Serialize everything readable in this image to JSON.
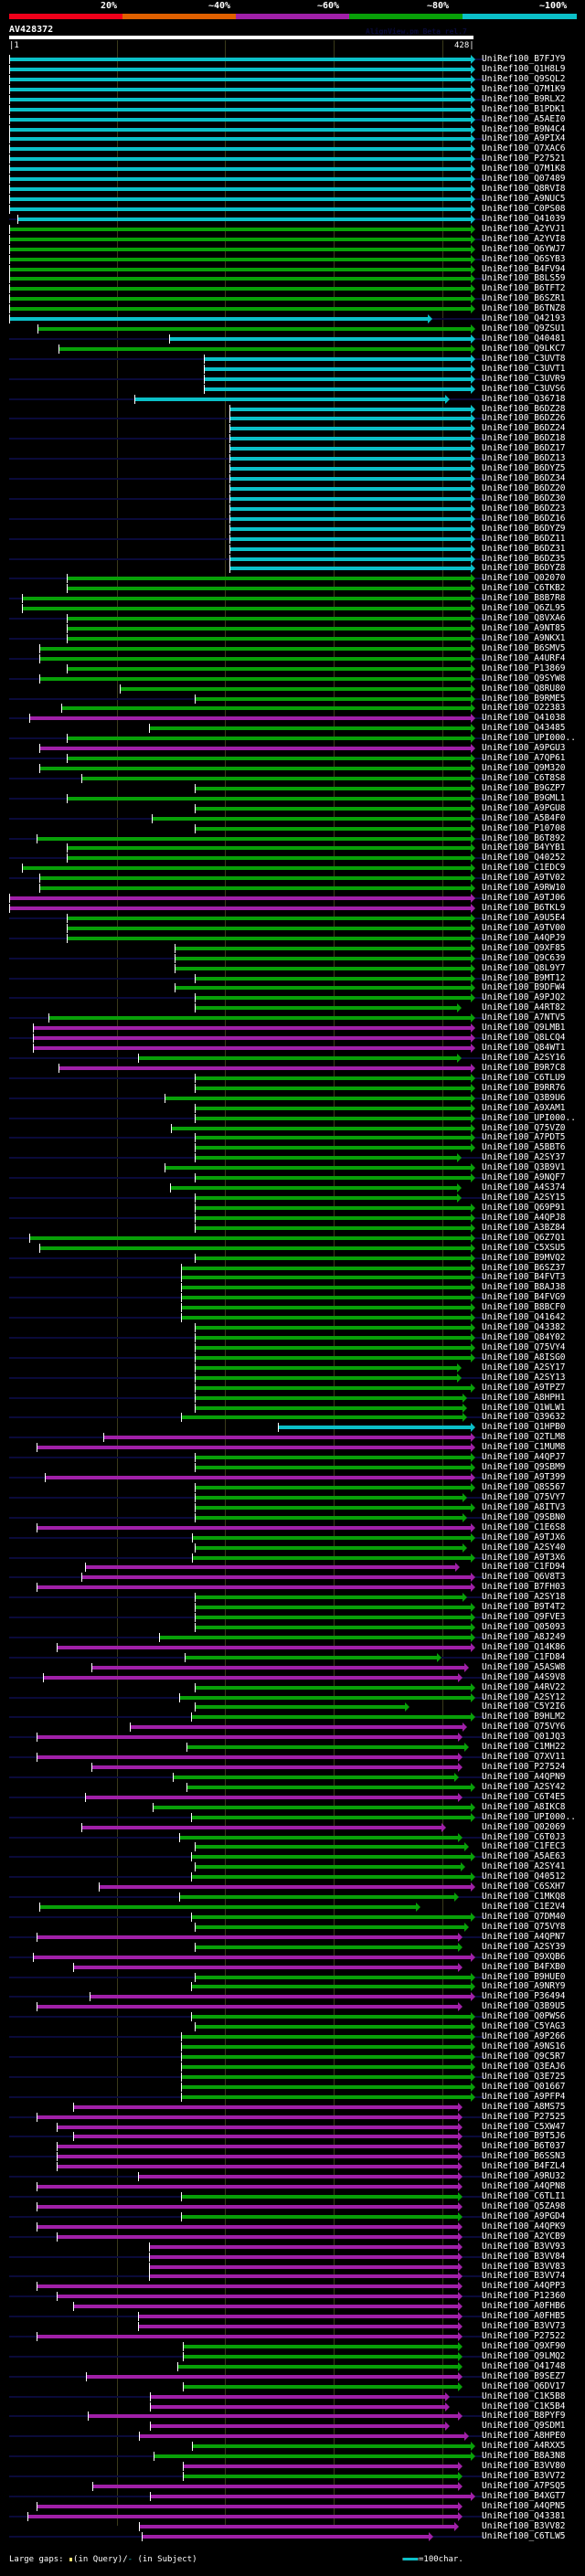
{
  "legend": {
    "labels": [
      "20%",
      "~40%",
      "~60%",
      "~80%",
      "~100%"
    ],
    "colors": [
      "#f0001a",
      "#e06000",
      "#a020a8",
      "#08a008",
      "#0bc0c8"
    ]
  },
  "query": {
    "id": "AV428372",
    "start": "|1",
    "end": "428|",
    "length": 428
  },
  "watermark": "AlignView.pm Beta rel.7",
  "footer": {
    "gaps_label": "Large gaps:",
    "in_query": "(in Query)/",
    "in_subject": "(in Subject)",
    "scale_label": "=100char."
  },
  "colors": {
    "c": "#0bc0c8",
    "g": "#08a008",
    "m": "#a020a8"
  },
  "rows": [
    [
      "UniRef100_B7FJY9",
      "c",
      1,
      428
    ],
    [
      "UniRef100_Q1H8L9",
      "c",
      1,
      428
    ],
    [
      "UniRef100_Q9SQL2",
      "c",
      1,
      428
    ],
    [
      "UniRef100_Q7M1K9",
      "c",
      1,
      428
    ],
    [
      "UniRef100_B9RLX2",
      "c",
      1,
      428
    ],
    [
      "UniRef100_B1PDK1",
      "c",
      1,
      428
    ],
    [
      "UniRef100_A5AEI0",
      "c",
      1,
      428
    ],
    [
      "UniRef100_B9N4C4",
      "c",
      1,
      428
    ],
    [
      "UniRef100_A9PIX4",
      "c",
      1,
      428
    ],
    [
      "UniRef100_Q7XAC6",
      "c",
      1,
      428
    ],
    [
      "UniRef100_P27521",
      "c",
      1,
      428
    ],
    [
      "UniRef100_Q7M1K8",
      "c",
      1,
      428
    ],
    [
      "UniRef100_Q07489",
      "c",
      1,
      428
    ],
    [
      "UniRef100_Q8RVI8",
      "c",
      1,
      428
    ],
    [
      "UniRef100_A9NUC5",
      "c",
      1,
      428
    ],
    [
      "UniRef100_C0PS08",
      "c",
      1,
      428
    ],
    [
      "UniRef100_Q41039",
      "c",
      9,
      428
    ],
    [
      "UniRef100_A2YVJ1",
      "g",
      1,
      428
    ],
    [
      "UniRef100_A2YVI8",
      "g",
      1,
      428
    ],
    [
      "UniRef100_Q6YWJ7",
      "g",
      1,
      428
    ],
    [
      "UniRef100_Q6SYB3",
      "g",
      1,
      428
    ],
    [
      "UniRef100_B4FV94",
      "g",
      1,
      428
    ],
    [
      "UniRef100_B8LS59",
      "g",
      1,
      428
    ],
    [
      "UniRef100_B6TFT2",
      "g",
      1,
      428
    ],
    [
      "UniRef100_B6SZR1",
      "g",
      1,
      428
    ],
    [
      "UniRef100_B6TNZ8",
      "g",
      1,
      428
    ],
    [
      "UniRef100_Q42193",
      "c",
      1,
      388
    ],
    [
      "UniRef100_Q9ZSU1",
      "g",
      27,
      428
    ],
    [
      "UniRef100_Q40481",
      "c",
      149,
      428
    ],
    [
      "UniRef100_Q9LKC7",
      "g",
      47,
      428
    ],
    [
      "UniRef100_C3UVT8",
      "c",
      181,
      428
    ],
    [
      "UniRef100_C3UVT1",
      "c",
      181,
      428
    ],
    [
      "UniRef100_C3UVR9",
      "c",
      181,
      428
    ],
    [
      "UniRef100_C3UVS6",
      "c",
      181,
      428
    ],
    [
      "UniRef100_Q36718",
      "c",
      117,
      404
    ],
    [
      "UniRef100_B6DZ28",
      "c",
      205,
      428
    ],
    [
      "UniRef100_B6DZ26",
      "c",
      205,
      428
    ],
    [
      "UniRef100_B6DZ24",
      "c",
      205,
      428
    ],
    [
      "UniRef100_B6DZ18",
      "c",
      205,
      428
    ],
    [
      "UniRef100_B6DZ17",
      "c",
      205,
      428
    ],
    [
      "UniRef100_B6DZ13",
      "c",
      205,
      428
    ],
    [
      "UniRef100_B6DYZ5",
      "c",
      205,
      428
    ],
    [
      "UniRef100_B6DZ34",
      "c",
      205,
      428
    ],
    [
      "UniRef100_B6DZ20",
      "c",
      205,
      428
    ],
    [
      "UniRef100_B6DZ30",
      "c",
      205,
      428
    ],
    [
      "UniRef100_B6DZ23",
      "c",
      205,
      428
    ],
    [
      "UniRef100_B6DZ16",
      "c",
      205,
      428
    ],
    [
      "UniRef100_B6DYZ9",
      "c",
      205,
      428
    ],
    [
      "UniRef100_B6DZ11",
      "c",
      205,
      428
    ],
    [
      "UniRef100_B6DZ31",
      "c",
      205,
      428
    ],
    [
      "UniRef100_B6DZ35",
      "c",
      205,
      428
    ],
    [
      "UniRef100_B6DYZ8",
      "c",
      205,
      428
    ],
    [
      "UniRef100_Q02070",
      "g",
      54,
      428
    ],
    [
      "UniRef100_C6TKB2",
      "g",
      54,
      428
    ],
    [
      "UniRef100_B8B7R8",
      "g",
      13,
      428
    ],
    [
      "UniRef100_Q6ZL95",
      "g",
      13,
      428
    ],
    [
      "UniRef100_Q8VXA6",
      "g",
      54,
      428
    ],
    [
      "UniRef100_A9NT85",
      "g",
      54,
      428
    ],
    [
      "UniRef100_A9NKX1",
      "g",
      54,
      428
    ],
    [
      "UniRef100_B6SMV5",
      "g",
      29,
      428
    ],
    [
      "UniRef100_A4URF4",
      "g",
      29,
      428
    ],
    [
      "UniRef100_P13869",
      "g",
      54,
      428
    ],
    [
      "UniRef100_Q9SYW8",
      "g",
      29,
      428
    ],
    [
      "UniRef100_Q8RU80",
      "g",
      103,
      428
    ],
    [
      "UniRef100_B9RME5",
      "g",
      173,
      428
    ],
    [
      "UniRef100_O22383",
      "g",
      49,
      428
    ],
    [
      "UniRef100_Q41038",
      "m",
      20,
      428
    ],
    [
      "UniRef100_Q43485",
      "g",
      130,
      428
    ],
    [
      "UniRef100_UPI000..",
      "g",
      54,
      428
    ],
    [
      "UniRef100_A9PGU3",
      "m",
      29,
      428
    ],
    [
      "UniRef100_A7QP61",
      "g",
      54,
      428
    ],
    [
      "UniRef100_Q9M320",
      "g",
      29,
      428
    ],
    [
      "UniRef100_C6T8S8",
      "g",
      68,
      428
    ],
    [
      "UniRef100_B9GZP7",
      "g",
      173,
      428
    ],
    [
      "UniRef100_B9GML1",
      "g",
      54,
      428
    ],
    [
      "UniRef100_A9PGU8",
      "g",
      173,
      428
    ],
    [
      "UniRef100_A5B4F0",
      "g",
      133,
      428
    ],
    [
      "UniRef100_P10708",
      "g",
      173,
      428
    ],
    [
      "UniRef100_B6T892",
      "g",
      26,
      428
    ],
    [
      "UniRef100_B4YYB1",
      "g",
      54,
      428
    ],
    [
      "UniRef100_Q40252",
      "g",
      54,
      428
    ],
    [
      "UniRef100_C1EDC9",
      "g",
      13,
      428
    ],
    [
      "UniRef100_A9TV02",
      "g",
      29,
      428
    ],
    [
      "UniRef100_A9RW10",
      "g",
      29,
      428
    ],
    [
      "UniRef100_A9TJ06",
      "m",
      1,
      428
    ],
    [
      "UniRef100_B6TKL9",
      "m",
      1,
      428
    ],
    [
      "UniRef100_A9U5E4",
      "g",
      54,
      428
    ],
    [
      "UniRef100_A9TV00",
      "g",
      54,
      428
    ],
    [
      "UniRef100_A4QPJ9",
      "g",
      54,
      428
    ],
    [
      "UniRef100_Q9XF85",
      "g",
      154,
      428
    ],
    [
      "UniRef100_Q9C639",
      "g",
      154,
      428
    ],
    [
      "UniRef100_Q8L9Y7",
      "g",
      154,
      428
    ],
    [
      "UniRef100_B9MT12",
      "g",
      173,
      428
    ],
    [
      "UniRef100_B9DFW4",
      "g",
      154,
      428
    ],
    [
      "UniRef100_A9PJQ2",
      "g",
      173,
      428
    ],
    [
      "UniRef100_A4RT82",
      "g",
      173,
      415
    ],
    [
      "UniRef100_A7NTV5",
      "g",
      37,
      428
    ],
    [
      "UniRef100_Q9LMB1",
      "m",
      23,
      428
    ],
    [
      "UniRef100_Q8LCQ4",
      "m",
      23,
      428
    ],
    [
      "UniRef100_Q84WT1",
      "m",
      23,
      428
    ],
    [
      "UniRef100_A2SY16",
      "g",
      120,
      415
    ],
    [
      "UniRef100_B9R7C8",
      "m",
      47,
      428
    ],
    [
      "UniRef100_C6TLU9",
      "g",
      173,
      428
    ],
    [
      "UniRef100_B9RR76",
      "g",
      173,
      428
    ],
    [
      "UniRef100_Q3B9U6",
      "g",
      145,
      428
    ],
    [
      "UniRef100_A9XAM1",
      "g",
      173,
      428
    ],
    [
      "UniRef100_UPI000..",
      "g",
      173,
      428
    ],
    [
      "UniRef100_Q75VZ0",
      "g",
      151,
      428
    ],
    [
      "UniRef100_A7PDT5",
      "g",
      173,
      428
    ],
    [
      "UniRef100_A5BBT6",
      "g",
      173,
      428
    ],
    [
      "UniRef100_A2SY37",
      "g",
      173,
      415
    ],
    [
      "UniRef100_Q3B9V1",
      "g",
      145,
      428
    ],
    [
      "UniRef100_A9NQF7",
      "g",
      173,
      428
    ],
    [
      "UniRef100_A4S374",
      "g",
      150,
      415
    ],
    [
      "UniRef100_A2SY15",
      "g",
      173,
      415
    ],
    [
      "UniRef100_Q69P91",
      "g",
      173,
      428
    ],
    [
      "UniRef100_A4QPJ8",
      "g",
      173,
      428
    ],
    [
      "UniRef100_A3BZ84",
      "g",
      173,
      428
    ],
    [
      "UniRef100_Q6Z7Q1",
      "g",
      20,
      428
    ],
    [
      "UniRef100_C5XSU5",
      "g",
      29,
      428
    ],
    [
      "UniRef100_B9MVQ2",
      "g",
      173,
      428
    ],
    [
      "UniRef100_B6SZ37",
      "g",
      160,
      428
    ],
    [
      "UniRef100_B4FVT3",
      "g",
      160,
      428
    ],
    [
      "UniRef100_B8AJ38",
      "g",
      160,
      428
    ],
    [
      "UniRef100_B4FVG9",
      "g",
      160,
      428
    ],
    [
      "UniRef100_B8BCF0",
      "g",
      160,
      428
    ],
    [
      "UniRef100_Q41642",
      "g",
      160,
      428
    ],
    [
      "UniRef100_Q43382",
      "g",
      173,
      428
    ],
    [
      "UniRef100_Q84Y02",
      "g",
      173,
      428
    ],
    [
      "UniRef100_Q75VY4",
      "g",
      173,
      428
    ],
    [
      "UniRef100_A8ISG0",
      "g",
      173,
      428
    ],
    [
      "UniRef100_A2SY17",
      "g",
      173,
      415
    ],
    [
      "UniRef100_A2SY13",
      "g",
      173,
      415
    ],
    [
      "UniRef100_A9TPZ7",
      "g",
      173,
      428
    ],
    [
      "UniRef100_A8HPH1",
      "g",
      173,
      420
    ],
    [
      "UniRef100_Q1WLW1",
      "g",
      173,
      420
    ],
    [
      "UniRef100_Q39632",
      "g",
      160,
      420
    ],
    [
      "UniRef100_Q1HPB0",
      "c",
      250,
      428
    ],
    [
      "UniRef100_Q2TLM8",
      "m",
      88,
      428
    ],
    [
      "UniRef100_C1MUM8",
      "m",
      26,
      428
    ],
    [
      "UniRef100_A4QPJ7",
      "g",
      173,
      428
    ],
    [
      "UniRef100_Q9SBM9",
      "g",
      173,
      428
    ],
    [
      "UniRef100_A9T399",
      "m",
      34,
      428
    ],
    [
      "UniRef100_Q8S567",
      "g",
      173,
      428
    ],
    [
      "UniRef100_Q75VY7",
      "g",
      173,
      420
    ],
    [
      "UniRef100_A8ITV3",
      "g",
      173,
      428
    ],
    [
      "UniRef100_Q9SBN0",
      "g",
      173,
      420
    ],
    [
      "UniRef100_C1E6S8",
      "m",
      26,
      428
    ],
    [
      "UniRef100_A9TJX6",
      "g",
      170,
      428
    ],
    [
      "UniRef100_A2SY40",
      "g",
      173,
      420
    ],
    [
      "UniRef100_A9T3X6",
      "g",
      170,
      428
    ],
    [
      "UniRef100_C1FD94",
      "m",
      71,
      414
    ],
    [
      "UniRef100_Q6V8T3",
      "m",
      68,
      428
    ],
    [
      "UniRef100_B7FH03",
      "m",
      26,
      428
    ],
    [
      "UniRef100_A2SY18",
      "g",
      173,
      420
    ],
    [
      "UniRef100_B9T4T2",
      "g",
      173,
      428
    ],
    [
      "UniRef100_Q9FVE3",
      "g",
      173,
      428
    ],
    [
      "UniRef100_Q05093",
      "g",
      173,
      428
    ],
    [
      "UniRef100_A8J249",
      "g",
      140,
      428
    ],
    [
      "UniRef100_Q14K86",
      "m",
      45,
      428
    ],
    [
      "UniRef100_C1FD84",
      "g",
      163,
      397
    ],
    [
      "UniRef100_A5ASW8",
      "m",
      77,
      422
    ],
    [
      "UniRef100_A4S9V8",
      "m",
      32,
      416
    ],
    [
      "UniRef100_A4RV22",
      "g",
      173,
      428
    ],
    [
      "UniRef100_A2SY12",
      "g",
      158,
      428
    ],
    [
      "UniRef100_C5Y2I6",
      "g",
      173,
      367
    ],
    [
      "UniRef100_B9HLM2",
      "g",
      169,
      428
    ],
    [
      "UniRef100_Q75VY6",
      "m",
      113,
      420
    ],
    [
      "UniRef100_Q01JQ3",
      "m",
      26,
      416
    ],
    [
      "UniRef100_C1MH22",
      "g",
      165,
      422
    ],
    [
      "UniRef100_Q7XV11",
      "m",
      26,
      416
    ],
    [
      "UniRef100_P27524",
      "m",
      77,
      416
    ],
    [
      "UniRef100_A4QPN9",
      "g",
      152,
      413
    ],
    [
      "UniRef100_A2SY42",
      "g",
      165,
      428
    ],
    [
      "UniRef100_C6T4E5",
      "m",
      71,
      416
    ],
    [
      "UniRef100_A8IKC8",
      "g",
      134,
      428
    ],
    [
      "UniRef100_UPI000..",
      "g",
      169,
      428
    ],
    [
      "UniRef100_Q02069",
      "m",
      68,
      401
    ],
    [
      "UniRef100_C6T0J3",
      "g",
      158,
      416
    ],
    [
      "UniRef100_C1FEC3",
      "g",
      173,
      422
    ],
    [
      "UniRef100_A5AE63",
      "g",
      169,
      428
    ],
    [
      "UniRef100_A2SY41",
      "g",
      173,
      419
    ],
    [
      "UniRef100_Q40512",
      "g",
      169,
      428
    ],
    [
      "UniRef100_C6SXH7",
      "m",
      84,
      428
    ],
    [
      "UniRef100_C1MKQ8",
      "g",
      158,
      413
    ],
    [
      "UniRef100_C1E2V4",
      "g",
      29,
      377
    ],
    [
      "UniRef100_Q7DM40",
      "g",
      169,
      428
    ],
    [
      "UniRef100_Q75VY8",
      "g",
      173,
      422
    ],
    [
      "UniRef100_A4QPN7",
      "m",
      26,
      416
    ],
    [
      "UniRef100_A2SY39",
      "g",
      173,
      416
    ],
    [
      "UniRef100_Q9XQB6",
      "m",
      23,
      428
    ],
    [
      "UniRef100_B4FXB0",
      "m",
      60,
      416
    ],
    [
      "UniRef100_B9HUE0",
      "g",
      173,
      428
    ],
    [
      "UniRef100_A9NRY9",
      "g",
      169,
      428
    ],
    [
      "UniRef100_P36494",
      "m",
      75,
      428
    ],
    [
      "UniRef100_Q3B9U5",
      "m",
      26,
      416
    ],
    [
      "UniRef100_Q0PWS6",
      "g",
      169,
      428
    ],
    [
      "UniRef100_C5YAG3",
      "g",
      173,
      428
    ],
    [
      "UniRef100_A9P266",
      "g",
      160,
      428
    ],
    [
      "UniRef100_A9NS16",
      "g",
      160,
      428
    ],
    [
      "UniRef100_Q9C5R7",
      "g",
      160,
      428
    ],
    [
      "UniRef100_Q3EAJ6",
      "g",
      160,
      428
    ],
    [
      "UniRef100_Q3E725",
      "g",
      160,
      428
    ],
    [
      "UniRef100_Q01667",
      "g",
      160,
      428
    ],
    [
      "UniRef100_A9PFP4",
      "g",
      160,
      428
    ],
    [
      "UniRef100_A8MS75",
      "m",
      60,
      416
    ],
    [
      "UniRef100_P27525",
      "m",
      26,
      416
    ],
    [
      "UniRef100_C5XW47",
      "m",
      45,
      416
    ],
    [
      "UniRef100_B9T5J6",
      "m",
      60,
      416
    ],
    [
      "UniRef100_B6T037",
      "m",
      45,
      416
    ],
    [
      "UniRef100_B6SSN3",
      "m",
      45,
      416
    ],
    [
      "UniRef100_B4FZL4",
      "m",
      45,
      416
    ],
    [
      "UniRef100_A9RU32",
      "m",
      120,
      416
    ],
    [
      "UniRef100_A4QPN8",
      "m",
      26,
      416
    ],
    [
      "UniRef100_C6TLI1",
      "g",
      160,
      416
    ],
    [
      "UniRef100_Q5ZA98",
      "m",
      26,
      416
    ],
    [
      "UniRef100_A9PGD4",
      "g",
      160,
      416
    ],
    [
      "UniRef100_A4QPK9",
      "m",
      26,
      416
    ],
    [
      "UniRef100_A2YCB9",
      "m",
      45,
      416
    ],
    [
      "UniRef100_B3VV93",
      "m",
      130,
      416
    ],
    [
      "UniRef100_B3VV84",
      "m",
      130,
      416
    ],
    [
      "UniRef100_B3VV83",
      "m",
      130,
      416
    ],
    [
      "UniRef100_B3VV74",
      "m",
      130,
      416
    ],
    [
      "UniRef100_A4QPP3",
      "m",
      26,
      416
    ],
    [
      "UniRef100_P12360",
      "m",
      45,
      416
    ],
    [
      "UniRef100_A0FHB6",
      "m",
      60,
      416
    ],
    [
      "UniRef100_A0FHB5",
      "m",
      120,
      416
    ],
    [
      "UniRef100_B3VV73",
      "m",
      120,
      416
    ],
    [
      "UniRef100_P27522",
      "m",
      26,
      416
    ],
    [
      "UniRef100_Q9XF90",
      "g",
      162,
      416
    ],
    [
      "UniRef100_Q9LMQ2",
      "g",
      162,
      416
    ],
    [
      "UniRef100_Q41748",
      "g",
      157,
      416
    ],
    [
      "UniRef100_B9SEZ7",
      "m",
      72,
      416
    ],
    [
      "UniRef100_Q6DV17",
      "g",
      162,
      416
    ],
    [
      "UniRef100_C1K5B8",
      "m",
      131,
      404
    ],
    [
      "UniRef100_C1K5B4",
      "m",
      131,
      404
    ],
    [
      "UniRef100_B8PYF9",
      "m",
      74,
      416
    ],
    [
      "UniRef100_Q9SDM1",
      "m",
      131,
      404
    ],
    [
      "UniRef100_A8HPE0",
      "m",
      121,
      422
    ],
    [
      "UniRef100_A4RXX5",
      "g",
      170,
      428
    ],
    [
      "UniRef100_B8A3N8",
      "g",
      135,
      428
    ],
    [
      "UniRef100_B3VV80",
      "m",
      162,
      416
    ],
    [
      "UniRef100_B3VV72",
      "g",
      162,
      416
    ],
    [
      "UniRef100_A7PSQ5",
      "m",
      78,
      416
    ],
    [
      "UniRef100_B4XGT7",
      "m",
      131,
      428
    ],
    [
      "UniRef100_A4QPN5",
      "m",
      26,
      416
    ],
    [
      "UniRef100_Q43381",
      "m",
      18,
      416
    ],
    [
      "UniRef100_B3VV82",
      "m",
      121,
      413
    ],
    [
      "UniRef100_C6TLW5",
      "m",
      124,
      389
    ]
  ]
}
